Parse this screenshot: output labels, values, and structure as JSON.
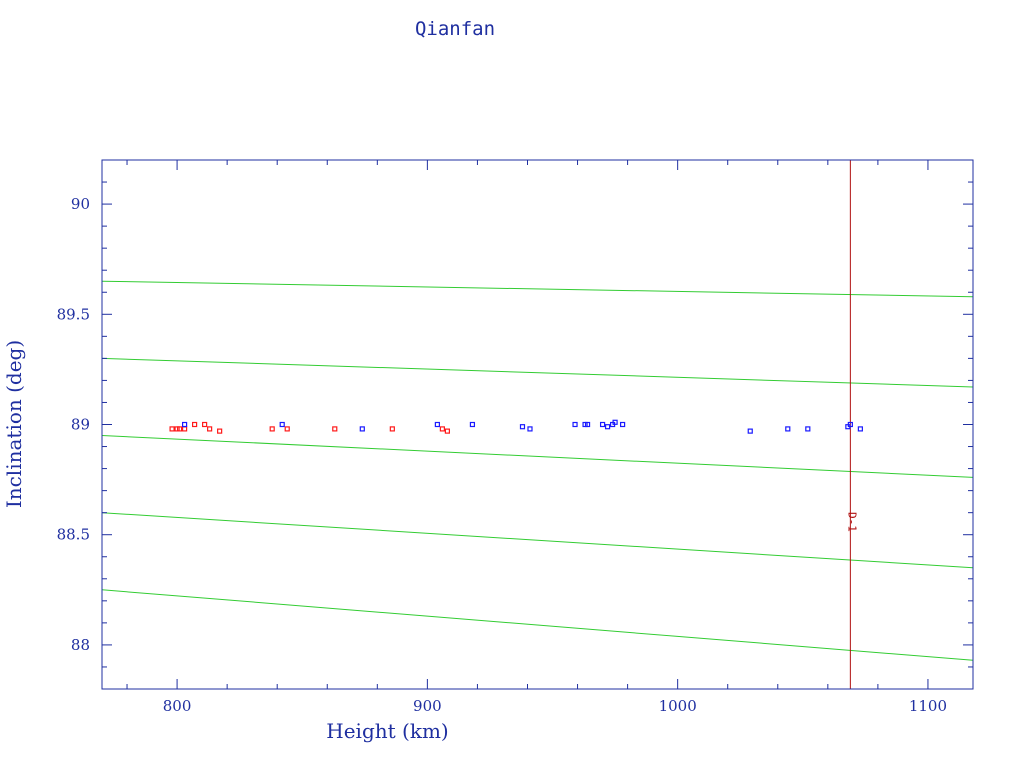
{
  "title": "Qianfan",
  "chart_data": {
    "type": "scatter",
    "title": "Qianfan",
    "xlabel": "Height (km)",
    "ylabel": "Inclination (deg)",
    "xlim": [
      770,
      1118
    ],
    "ylim": [
      87.8,
      90.2
    ],
    "xticks": [
      800,
      900,
      1000,
      1100
    ],
    "yticks": [
      88,
      88.5,
      89,
      89.5,
      90
    ],
    "grid": false,
    "colors": {
      "axis": "#1f2fa0",
      "curve": "#33cc33",
      "marker_line": "#b01010"
    },
    "series": [
      {
        "color": "#ff1a1a",
        "points": [
          [
            798,
            88.98
          ],
          [
            800,
            88.98
          ],
          [
            801,
            88.98
          ],
          [
            803,
            88.98
          ],
          [
            807,
            89.0
          ],
          [
            811,
            89.0
          ],
          [
            813,
            88.98
          ],
          [
            817,
            88.97
          ],
          [
            838,
            88.98
          ],
          [
            844,
            88.98
          ],
          [
            863,
            88.98
          ],
          [
            886,
            88.98
          ],
          [
            906,
            88.98
          ],
          [
            908,
            88.97
          ]
        ]
      },
      {
        "color": "#1a1aff",
        "points": [
          [
            803,
            89.0
          ],
          [
            842,
            89.0
          ],
          [
            874,
            88.98
          ],
          [
            904,
            89.0
          ],
          [
            918,
            89.0
          ],
          [
            938,
            88.99
          ],
          [
            941,
            88.98
          ],
          [
            959,
            89.0
          ],
          [
            963,
            89.0
          ],
          [
            964,
            89.0
          ],
          [
            970,
            89.0
          ],
          [
            972,
            88.99
          ],
          [
            974,
            89.0
          ],
          [
            975,
            89.01
          ],
          [
            978,
            89.0
          ],
          [
            1029,
            88.97
          ],
          [
            1044,
            88.98
          ],
          [
            1052,
            88.98
          ],
          [
            1068,
            88.99
          ],
          [
            1069,
            89.0
          ],
          [
            1073,
            88.98
          ]
        ]
      }
    ],
    "curves": [
      {
        "points": [
          [
            770,
            89.65
          ],
          [
            1118,
            89.58
          ]
        ]
      },
      {
        "points": [
          [
            770,
            89.3
          ],
          [
            1118,
            89.17
          ]
        ]
      },
      {
        "points": [
          [
            770,
            88.95
          ],
          [
            1118,
            88.76
          ]
        ]
      },
      {
        "points": [
          [
            770,
            88.6
          ],
          [
            1118,
            88.35
          ]
        ]
      },
      {
        "points": [
          [
            770,
            88.25
          ],
          [
            1118,
            87.93
          ]
        ]
      }
    ],
    "vertical_marker": {
      "x": 1069,
      "label": "D-1"
    }
  }
}
